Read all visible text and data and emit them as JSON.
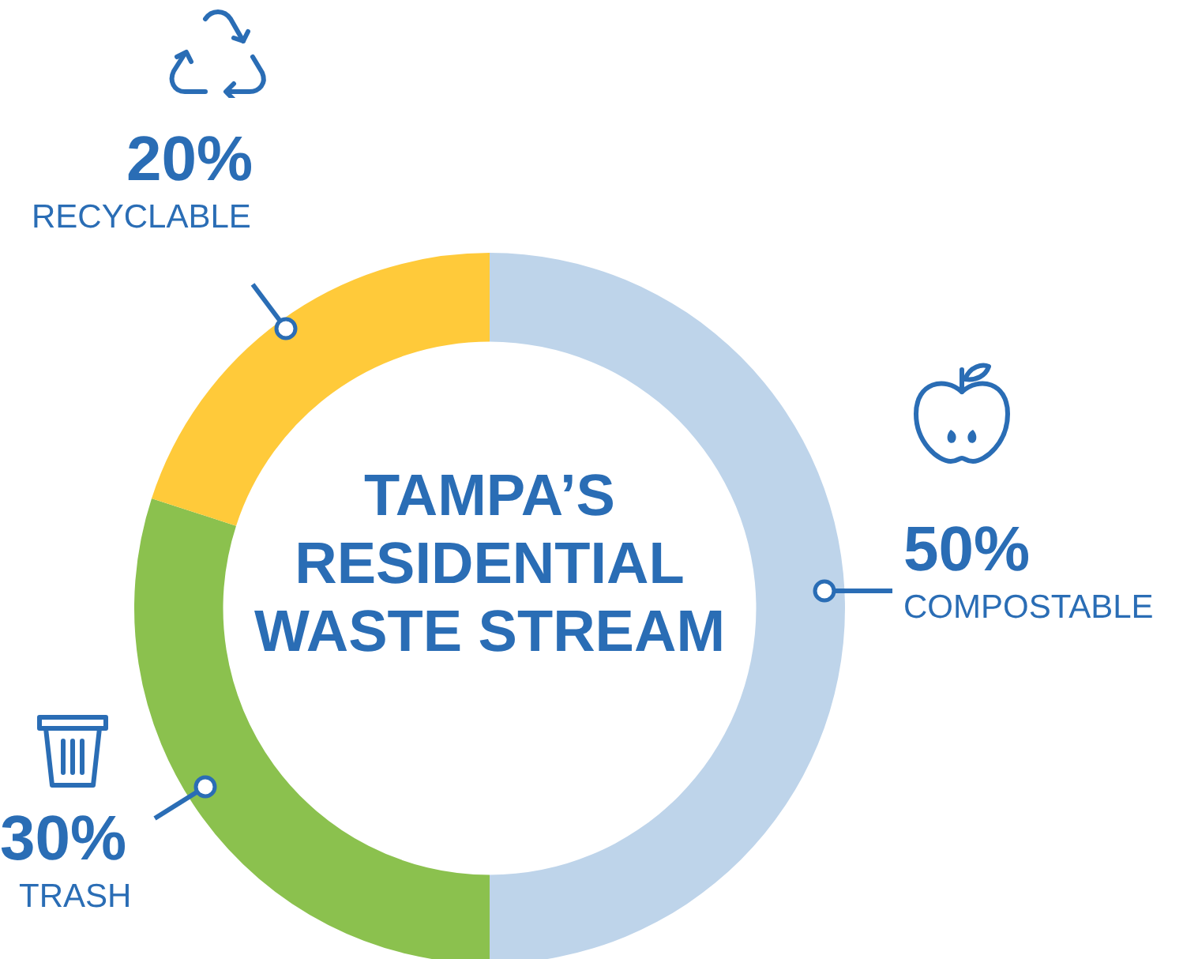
{
  "chart_data": {
    "type": "donut",
    "title": "TAMPA’S RESIDENTIAL WASTE STREAM",
    "categories": [
      "COMPOSTABLE",
      "TRASH",
      "RECYCLABLE"
    ],
    "values": [
      50,
      30,
      20
    ],
    "value_labels": [
      "50%",
      "30%",
      "20%"
    ],
    "colors": [
      "#bed4ea",
      "#8bc14e",
      "#ffca3a"
    ],
    "legend": false
  }
}
